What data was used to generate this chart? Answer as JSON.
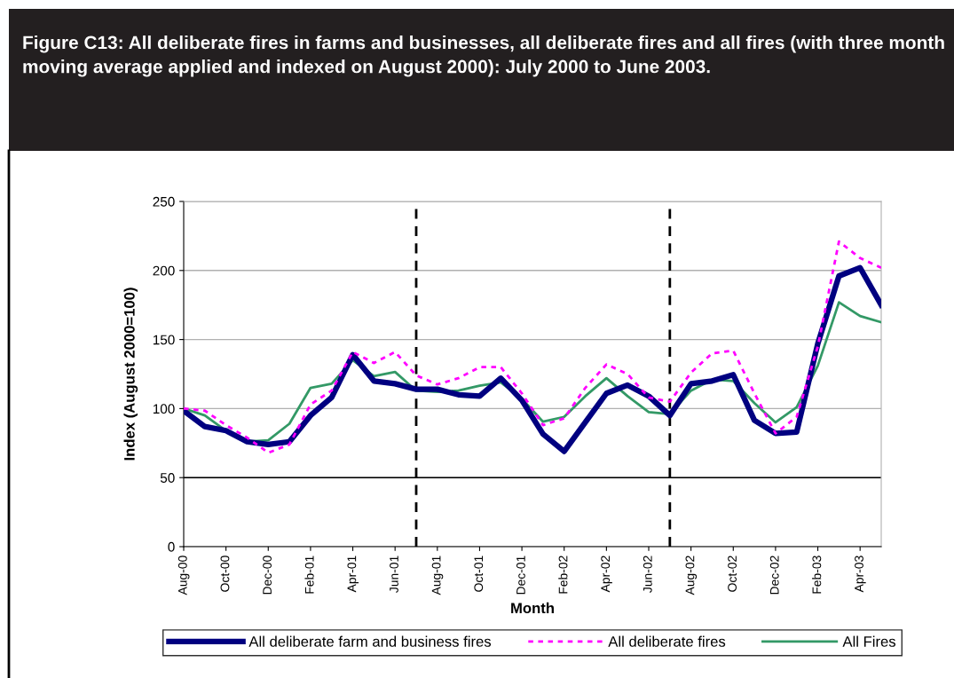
{
  "chart_data": {
    "type": "line",
    "title": "Figure C13: All deliberate fires in farms and businesses, all deliberate fires and all fires (with three month moving average applied and indexed on August 2000): July 2000 to June 2003.",
    "xlabel": "Month",
    "ylabel": "Index (August 2000=100)",
    "x": [
      "2000-08",
      "2000-09",
      "2000-10",
      "2000-11",
      "2000-12",
      "2001-01",
      "2001-02",
      "2001-03",
      "2001-04",
      "2001-05",
      "2001-06",
      "2001-07",
      "2001-08",
      "2001-09",
      "2001-10",
      "2001-11",
      "2001-12",
      "2002-01",
      "2002-02",
      "2002-03",
      "2002-04",
      "2002-05",
      "2002-06",
      "2002-07",
      "2002-08",
      "2002-09",
      "2002-10",
      "2002-11",
      "2002-12",
      "2003-01",
      "2003-02",
      "2003-03",
      "2003-04",
      "2003-05"
    ],
    "series": [
      {
        "name": "All deliberate farm and business fires",
        "color": "#000080",
        "line_style": "solid",
        "values": [
          98.5,
          87,
          84,
          76,
          74,
          76,
          95,
          108,
          139,
          120,
          118,
          114,
          114,
          110,
          109,
          122,
          106,
          81.5,
          69,
          90,
          111,
          117,
          109,
          95,
          118,
          120,
          124.5,
          91.5,
          82,
          83,
          147,
          196,
          202,
          175
        ]
      },
      {
        "name": "All deliberate fires",
        "color": "#ff00ff",
        "line_style": "dotted",
        "values": [
          100,
          98.5,
          88,
          79,
          68,
          74,
          103,
          113,
          141,
          133,
          141,
          124,
          117.5,
          122,
          130,
          130,
          111,
          88,
          93,
          115,
          132,
          125,
          108,
          105,
          126,
          140,
          142,
          111,
          82,
          94,
          145,
          221,
          209,
          202
        ]
      },
      {
        "name": "All Fires",
        "color": "#339966",
        "line_style": "solid",
        "values": [
          100,
          95,
          84,
          76,
          77,
          89,
          115,
          118,
          135,
          123.5,
          126.5,
          113,
          112,
          113,
          116.5,
          119,
          107,
          90.5,
          94,
          109,
          122,
          109,
          97.5,
          96,
          113,
          121,
          120,
          104,
          90,
          101,
          131,
          177,
          167,
          162.5
        ]
      }
    ],
    "xlim": [
      "2000-08",
      "2003-05"
    ],
    "xticks": [
      {
        "value": "2000-08",
        "label": "Aug-00"
      },
      {
        "value": "2000-10",
        "label": "Oct-00"
      },
      {
        "value": "2000-12",
        "label": "Dec-00"
      },
      {
        "value": "2001-02",
        "label": "Feb-01"
      },
      {
        "value": "2001-04",
        "label": "Apr-01"
      },
      {
        "value": "2001-06",
        "label": "Jun-01"
      },
      {
        "value": "2001-08",
        "label": "Aug-01"
      },
      {
        "value": "2001-10",
        "label": "Oct-01"
      },
      {
        "value": "2001-12",
        "label": "Dec-01"
      },
      {
        "value": "2002-02",
        "label": "Feb-02"
      },
      {
        "value": "2002-04",
        "label": "Apr-02"
      },
      {
        "value": "2002-06",
        "label": "Jun-02"
      },
      {
        "value": "2002-08",
        "label": "Aug-02"
      },
      {
        "value": "2002-10",
        "label": "Oct-02"
      },
      {
        "value": "2002-12",
        "label": "Dec-02"
      },
      {
        "value": "2003-02",
        "label": "Feb-03"
      },
      {
        "value": "2003-04",
        "label": "Apr-03"
      }
    ],
    "ylim": [
      0,
      250
    ],
    "yticks": [
      0,
      50,
      100,
      150,
      200,
      250
    ],
    "ref_lines": [
      {
        "axis": "x",
        "value": "2001-07",
        "color": "#000000",
        "line_style": "dashed"
      },
      {
        "axis": "x",
        "value": "2002-07",
        "color": "#000000",
        "line_style": "dashed"
      },
      {
        "axis": "y",
        "value": 50,
        "color": "#000000",
        "line_style": "solid"
      }
    ],
    "grid": "y",
    "legend": "bottom",
    "marker": "none"
  }
}
